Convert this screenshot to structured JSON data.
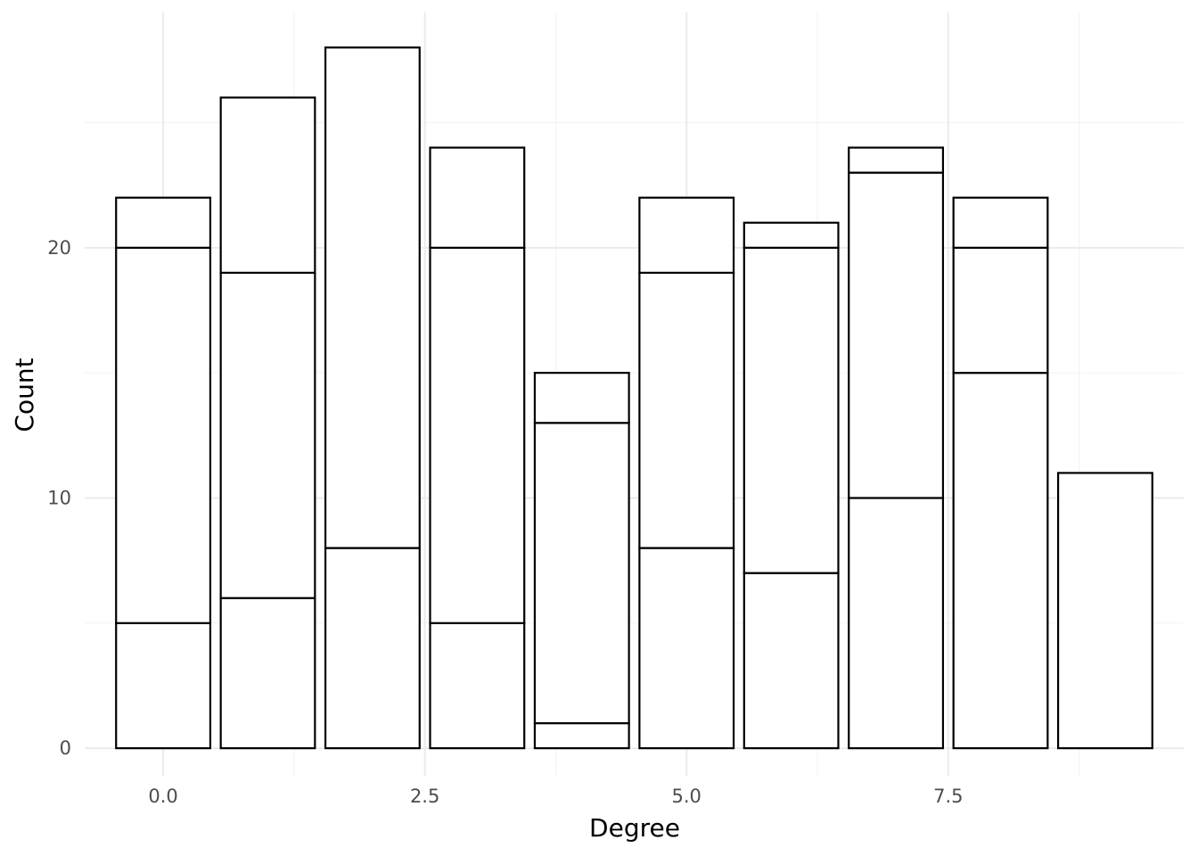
{
  "chart_data": {
    "type": "bar",
    "stacked": true,
    "xlabel": "Degree",
    "ylabel": "Count",
    "x": [
      0,
      1,
      2,
      3,
      4,
      5,
      6,
      7,
      8,
      9
    ],
    "stack_boundaries": [
      [
        5,
        20,
        22
      ],
      [
        6,
        19,
        26
      ],
      [
        8,
        28
      ],
      [
        5,
        20,
        24
      ],
      [
        1,
        13,
        15
      ],
      [
        8,
        19,
        22
      ],
      [
        7,
        20,
        21
      ],
      [
        10,
        23,
        24
      ],
      [
        15,
        20,
        22
      ],
      [
        11
      ]
    ],
    "totals": [
      22,
      26,
      28,
      24,
      15,
      22,
      21,
      24,
      22,
      11
    ],
    "xlim": [
      -0.75,
      9.75
    ],
    "ylim": [
      -1.1,
      29.4
    ],
    "xticks": [
      0.0,
      2.5,
      5.0,
      7.5
    ],
    "xtick_labels": [
      "0.0",
      "2.5",
      "5.0",
      "7.5"
    ],
    "yticks": [
      0,
      10,
      20
    ],
    "ytick_labels": [
      "0",
      "10",
      "20"
    ],
    "grid": true,
    "fill_color": "#ffffff",
    "edge_color": "#000000"
  }
}
